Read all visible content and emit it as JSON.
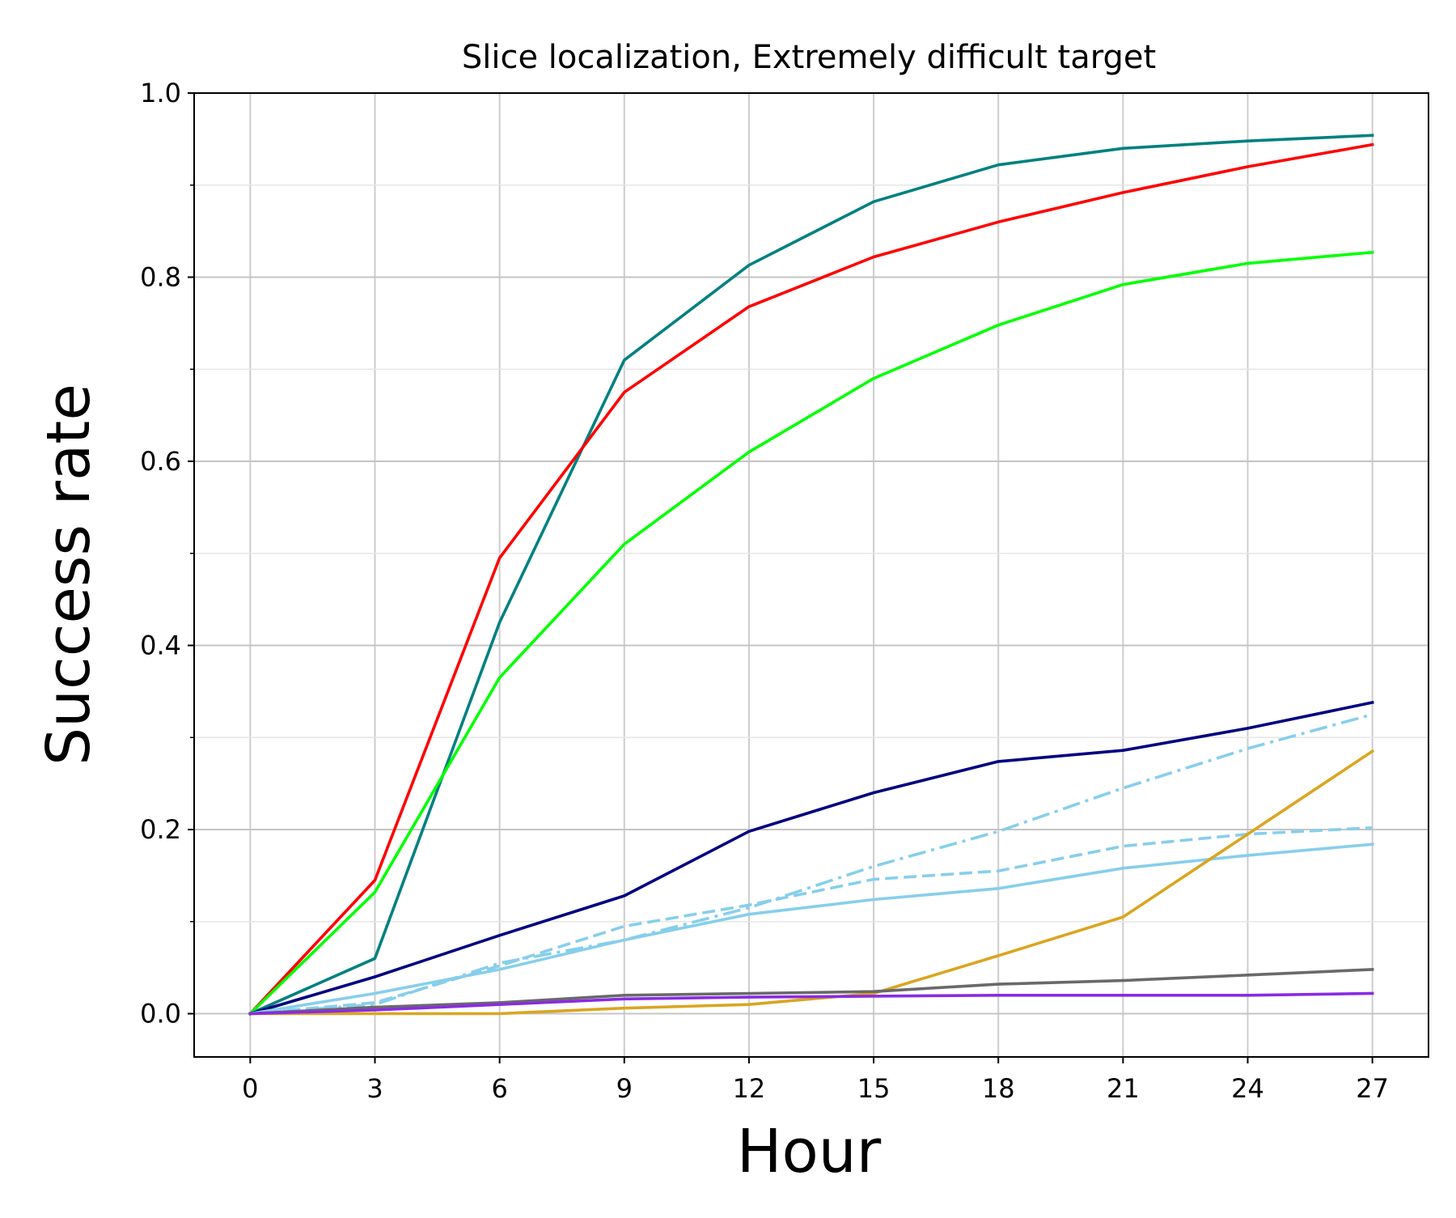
{
  "chart_data": {
    "type": "line",
    "title": "Slice localization, Extremely difficult target",
    "xlabel": "Hour",
    "ylabel": "Success rate",
    "x": [
      0,
      3,
      6,
      9,
      12,
      15,
      18,
      21,
      24,
      27
    ],
    "xticks": [
      "0",
      "3",
      "6",
      "9",
      "12",
      "15",
      "18",
      "21",
      "24",
      "27"
    ],
    "yticks": [
      "0.0",
      "0.2",
      "0.4",
      "0.6",
      "0.8",
      "1.0"
    ],
    "xlim": [
      -1.35,
      28.35
    ],
    "ylim": [
      -0.047,
      1.0
    ],
    "grid": true,
    "legend": "none",
    "series": [
      {
        "color": "#008080",
        "dash": "solid",
        "values": [
          0.0,
          0.06,
          0.425,
          0.71,
          0.813,
          0.882,
          0.922,
          0.94,
          0.948,
          0.954
        ]
      },
      {
        "color": "#ff0000",
        "dash": "solid",
        "values": [
          0.0,
          0.145,
          0.495,
          0.675,
          0.768,
          0.822,
          0.86,
          0.892,
          0.92,
          0.944
        ]
      },
      {
        "color": "#00ff00",
        "dash": "solid",
        "values": [
          0.0,
          0.132,
          0.365,
          0.51,
          0.61,
          0.69,
          0.748,
          0.792,
          0.815,
          0.827
        ]
      },
      {
        "color": "#000080",
        "dash": "solid",
        "values": [
          0.0,
          0.04,
          0.085,
          0.128,
          0.198,
          0.24,
          0.274,
          0.286,
          0.31,
          0.338
        ]
      },
      {
        "color": "#87ceeb",
        "dash": "dashdot",
        "values": [
          0.0,
          0.01,
          0.055,
          0.08,
          0.115,
          0.16,
          0.198,
          0.245,
          0.288,
          0.325
        ]
      },
      {
        "color": "#87ceeb",
        "dash": "dashed",
        "values": [
          0.0,
          0.012,
          0.052,
          0.095,
          0.118,
          0.146,
          0.155,
          0.182,
          0.195,
          0.202
        ]
      },
      {
        "color": "#87ceeb",
        "dash": "solid",
        "values": [
          0.0,
          0.022,
          0.048,
          0.08,
          0.108,
          0.124,
          0.136,
          0.158,
          0.172,
          0.184
        ]
      },
      {
        "color": "#daa520",
        "dash": "solid",
        "values": [
          0.0,
          0.0,
          0.0,
          0.006,
          0.01,
          0.022,
          0.063,
          0.105,
          0.195,
          0.285
        ]
      },
      {
        "color": "#696969",
        "dash": "solid",
        "values": [
          0.0,
          0.007,
          0.012,
          0.02,
          0.022,
          0.024,
          0.032,
          0.036,
          0.042,
          0.048
        ]
      },
      {
        "color": "#8a2be2",
        "dash": "solid",
        "values": [
          0.0,
          0.004,
          0.01,
          0.016,
          0.018,
          0.019,
          0.02,
          0.02,
          0.02,
          0.022
        ]
      }
    ]
  }
}
